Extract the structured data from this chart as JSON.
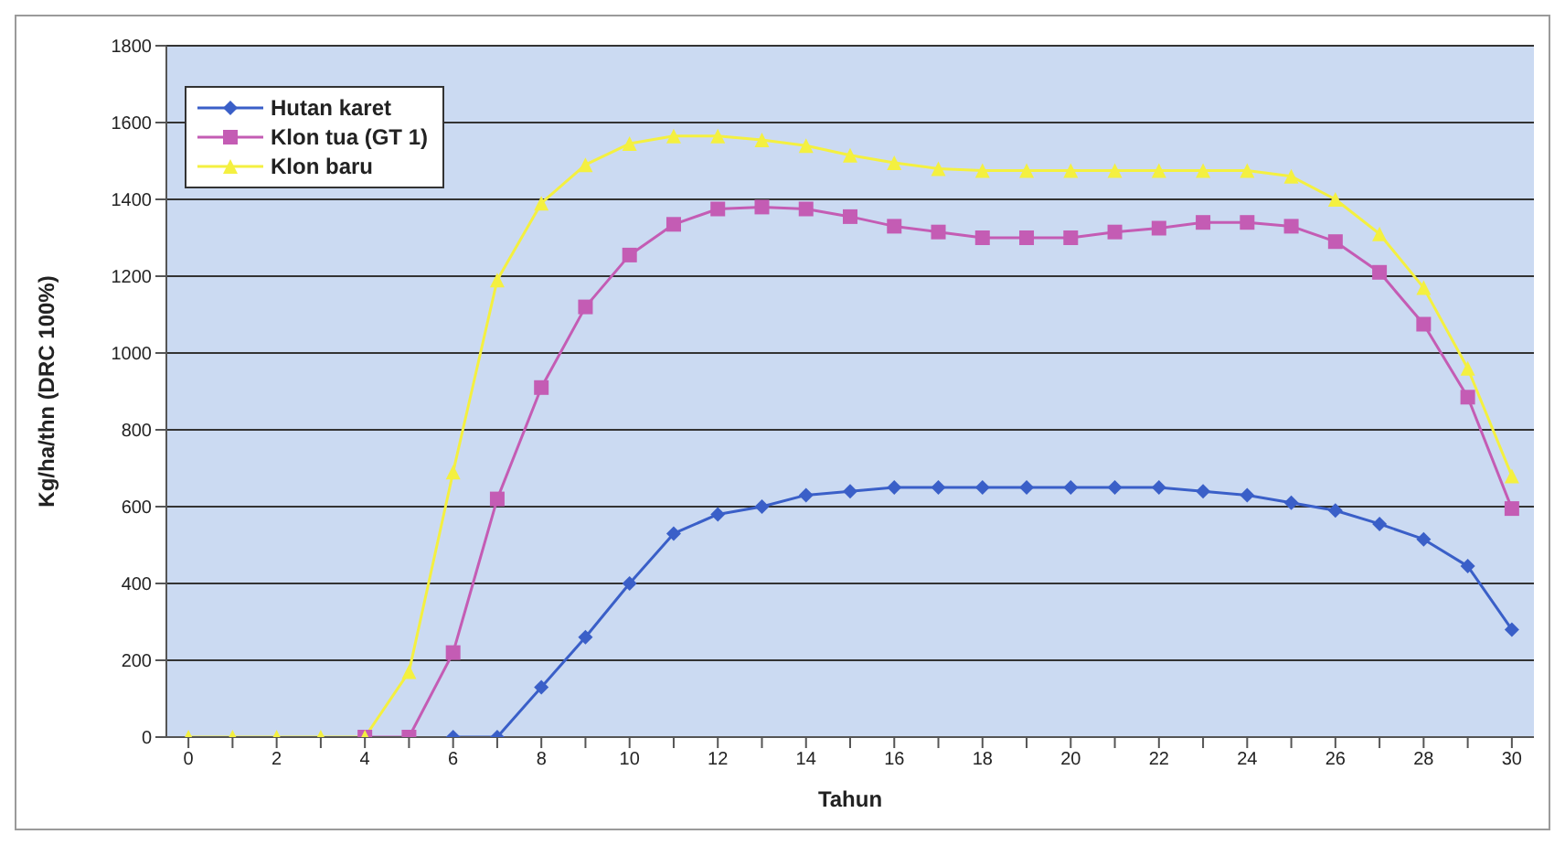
{
  "chart_data": {
    "type": "line",
    "xlabel": "Tahun",
    "ylabel": "Kg/ha/thn (DRC 100%)",
    "x": [
      0,
      1,
      2,
      3,
      4,
      5,
      6,
      7,
      8,
      9,
      10,
      11,
      12,
      13,
      14,
      15,
      16,
      17,
      18,
      19,
      20,
      21,
      22,
      23,
      24,
      25,
      26,
      27,
      28,
      29,
      30
    ],
    "xlim": [
      -0.5,
      30.5
    ],
    "xticks": [
      0,
      {
        "value": 1,
        "label": null
      },
      2,
      {
        "value": 3,
        "label": null
      },
      4,
      {
        "value": 5,
        "label": null
      },
      6,
      {
        "value": 7,
        "label": null
      },
      8,
      {
        "value": 9,
        "label": null
      },
      10,
      {
        "value": 11,
        "label": null
      },
      12,
      {
        "value": 13,
        "label": null
      },
      14,
      {
        "value": 15,
        "label": null
      },
      16,
      {
        "value": 17,
        "label": null
      },
      18,
      {
        "value": 19,
        "label": null
      },
      20,
      {
        "value": 21,
        "label": null
      },
      22,
      {
        "value": 23,
        "label": null
      },
      24,
      {
        "value": 25,
        "label": null
      },
      26,
      {
        "value": 27,
        "label": null
      },
      28,
      {
        "value": 29,
        "label": null
      },
      30
    ],
    "series": [
      {
        "name": "Hutan karet",
        "color": "#3a5fc8",
        "marker": "diamond",
        "values": [
          null,
          null,
          null,
          null,
          null,
          null,
          0,
          0,
          130,
          260,
          400,
          530,
          580,
          600,
          630,
          640,
          650,
          650,
          650,
          650,
          650,
          650,
          650,
          640,
          630,
          610,
          590,
          555,
          515,
          445,
          280
        ]
      },
      {
        "name": "Klon tua (GT 1)",
        "color": "#c45cb4",
        "marker": "square",
        "values": [
          null,
          null,
          null,
          null,
          0,
          0,
          220,
          620,
          910,
          1120,
          1255,
          1335,
          1375,
          1380,
          1375,
          1355,
          1330,
          1315,
          1300,
          1300,
          1300,
          1315,
          1325,
          1340,
          1340,
          1330,
          1290,
          1210,
          1075,
          885,
          595
        ]
      },
      {
        "name": "Klon baru",
        "color": "#f4f040",
        "marker": "triangle",
        "values": [
          0,
          0,
          0,
          0,
          0,
          170,
          690,
          1190,
          1390,
          1490,
          1545,
          1565,
          1565,
          1555,
          1540,
          1515,
          1495,
          1480,
          1475,
          1475,
          1475,
          1475,
          1475,
          1475,
          1475,
          1460,
          1400,
          1310,
          1170,
          960,
          680
        ]
      }
    ],
    "ylim": [
      0,
      1800
    ],
    "yticks": [
      0,
      200,
      400,
      600,
      800,
      1000,
      1200,
      1400,
      1600,
      1800
    ],
    "grid": "y",
    "legend": "top left"
  }
}
